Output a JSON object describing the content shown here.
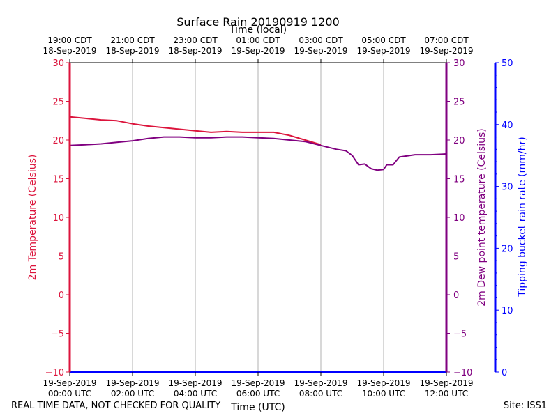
{
  "chart_data": {
    "type": "line",
    "title": "Surface Rain 20190919 1200",
    "top_axis_label": "Time (local)",
    "xlabel": "Time (UTC)",
    "ylabel_left": "2m Temperature (Celsius)",
    "ylabel_right": "2m Dew point temperature (Celsius)",
    "ylabel_far_right": "Tipping bucket rain rate (mm/hr)",
    "x_range_hours": [
      0,
      12
    ],
    "ylim_left": [
      -10,
      30
    ],
    "ylim_right": [
      -10,
      30
    ],
    "ylim_far_right": [
      0,
      50
    ],
    "y_ticks_left": [
      -10,
      -5,
      0,
      5,
      10,
      15,
      20,
      25,
      30
    ],
    "y_ticks_left_labels": [
      "−10",
      "−5",
      "0",
      "5",
      "10",
      "15",
      "20",
      "25",
      "30"
    ],
    "y_ticks_far_right": [
      0,
      10,
      20,
      30,
      40,
      50
    ],
    "x_ticks_hours": [
      0,
      2,
      4,
      6,
      8,
      10,
      12
    ],
    "x_tick_labels_utc": [
      [
        "19-Sep-2019",
        "00:00 UTC"
      ],
      [
        "19-Sep-2019",
        "02:00 UTC"
      ],
      [
        "19-Sep-2019",
        "04:00 UTC"
      ],
      [
        "19-Sep-2019",
        "06:00 UTC"
      ],
      [
        "19-Sep-2019",
        "08:00 UTC"
      ],
      [
        "19-Sep-2019",
        "10:00 UTC"
      ],
      [
        "19-Sep-2019",
        "12:00 UTC"
      ]
    ],
    "x_tick_labels_local": [
      [
        "19:00 CDT",
        "18-Sep-2019"
      ],
      [
        "21:00 CDT",
        "18-Sep-2019"
      ],
      [
        "23:00 CDT",
        "18-Sep-2019"
      ],
      [
        "01:00 CDT",
        "19-Sep-2019"
      ],
      [
        "03:00 CDT",
        "19-Sep-2019"
      ],
      [
        "05:00 CDT",
        "19-Sep-2019"
      ],
      [
        "07:00 CDT",
        "19-Sep-2019"
      ]
    ],
    "grid": "vertical",
    "series": [
      {
        "name": "2m Temperature (Celsius)",
        "color": "#dc143c",
        "axis": "left",
        "x": [
          0,
          0.5,
          1,
          1.5,
          2,
          2.5,
          3,
          3.5,
          4,
          4.5,
          5,
          5.5,
          6,
          6.5,
          7,
          7.5,
          8
        ],
        "y": [
          23.0,
          22.8,
          22.6,
          22.5,
          22.1,
          21.8,
          21.6,
          21.4,
          21.2,
          21.0,
          21.1,
          21.0,
          21.0,
          21.0,
          20.6,
          20.0,
          19.4
        ]
      },
      {
        "name": "2m Dew point temperature (Celsius)",
        "color": "#800080",
        "axis": "right",
        "x": [
          0,
          0.5,
          1,
          1.5,
          2,
          2.5,
          3,
          3.5,
          4,
          4.5,
          5,
          5.5,
          6,
          6.5,
          7,
          7.5,
          8,
          8.5,
          8.8,
          9.0,
          9.2,
          9.4,
          9.6,
          9.8,
          10.0,
          10.1,
          10.3,
          10.5,
          11.0,
          11.5,
          12.0
        ],
        "y": [
          19.3,
          19.4,
          19.5,
          19.7,
          19.9,
          20.2,
          20.4,
          20.4,
          20.3,
          20.3,
          20.4,
          20.4,
          20.3,
          20.2,
          20.0,
          19.8,
          19.3,
          18.8,
          18.6,
          18.0,
          16.8,
          16.9,
          16.3,
          16.1,
          16.2,
          16.8,
          16.8,
          17.8,
          18.1,
          18.1,
          18.2
        ]
      },
      {
        "name": "Tipping bucket rain rate (mm/hr)",
        "color": "#0000ff",
        "axis": "far_right",
        "x": [
          0,
          12
        ],
        "y": [
          0,
          0
        ]
      }
    ]
  },
  "footer": {
    "left": "REAL TIME DATA, NOT CHECKED FOR QUALITY",
    "right": "Site: ISS1"
  },
  "colors": {
    "temperature": "#dc143c",
    "dewpoint": "#800080",
    "rain": "#0000ff",
    "grid": "#b0b0b0"
  }
}
